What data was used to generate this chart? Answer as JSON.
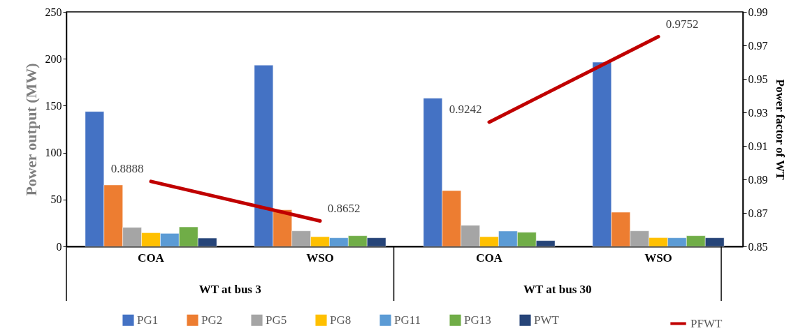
{
  "chart_data": {
    "type": "bar",
    "categories": [
      "COA",
      "WSO",
      "COA",
      "WSO"
    ],
    "ylabel": "Power output (MW)",
    "y2label": "Power factor of WT",
    "ylim": [
      0,
      250
    ],
    "yticks": [
      0,
      50,
      100,
      150,
      200,
      250
    ],
    "y2lim": [
      0.85,
      0.99
    ],
    "y2ticks": [
      0.85,
      0.87,
      0.89,
      0.91,
      0.93,
      0.95,
      0.97,
      0.99
    ],
    "annotations": [
      "WT at bus 3",
      "WT at bus 30"
    ],
    "legend": "bottom",
    "grid": false,
    "series": [
      {
        "name": "PG1",
        "color": "#4472c4",
        "values": [
          143.8,
          193.2,
          158,
          196.4
        ]
      },
      {
        "name": "PG2",
        "color": "#ed7d31",
        "values": [
          65.5,
          39.1,
          59.5,
          36.5
        ]
      },
      {
        "name": "PG5",
        "color": "#a5a5a5",
        "values": [
          20.3,
          16.6,
          22.5,
          16.6
        ]
      },
      {
        "name": "PG8",
        "color": "#ffc000",
        "values": [
          14.6,
          10.4,
          10.4,
          9.4
        ]
      },
      {
        "name": "PG11",
        "color": "#5b9bd5",
        "values": [
          13.9,
          9.2,
          16.4,
          9.2
        ]
      },
      {
        "name": "PG13",
        "color": "#70ad47",
        "values": [
          20.8,
          11.4,
          15.1,
          11.4
        ]
      },
      {
        "name": "PWT",
        "color": "#264478",
        "values": [
          8.9,
          9.2,
          6.2,
          9.2
        ]
      },
      {
        "name": "PFWT",
        "type": "line",
        "axis": "y2",
        "color": "#c00000",
        "values": [
          0.8888,
          0.8652,
          null,
          null
        ],
        "value_labels": [
          "0.8888",
          "0.8652",
          null,
          null
        ]
      },
      {
        "type": "line",
        "axis": "y2",
        "color": "#c00000",
        "values": [
          null,
          null,
          0.9242,
          0.9752
        ],
        "value_labels": [
          null,
          null,
          "0.9242",
          "0.9752"
        ]
      }
    ]
  }
}
